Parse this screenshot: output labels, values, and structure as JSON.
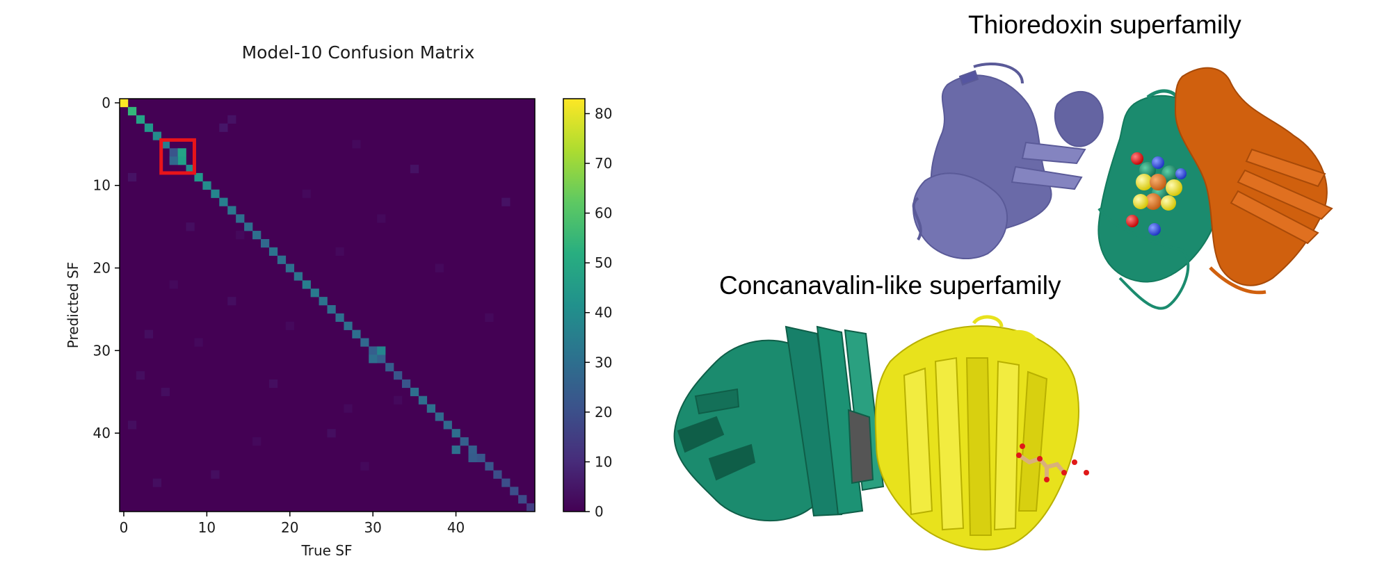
{
  "chart_data": {
    "type": "heatmap",
    "title": "Model-10 Confusion Matrix",
    "xlabel": "True SF",
    "ylabel": "Predicted SF",
    "size": 50,
    "xticks": [
      0,
      10,
      20,
      30,
      40
    ],
    "yticks": [
      0,
      10,
      20,
      30,
      40
    ],
    "colormap": "viridis",
    "colorbar": {
      "min": 0,
      "max": 83,
      "ticks": [
        0,
        10,
        20,
        30,
        40,
        50,
        60,
        70,
        80
      ]
    },
    "highlight_box": {
      "rows": [
        5,
        8
      ],
      "cols": [
        5,
        8
      ],
      "color": "#e8141a"
    },
    "diagonal": [
      83,
      55,
      48,
      44,
      40,
      36,
      22,
      47,
      40,
      44,
      40,
      38,
      36,
      33,
      30,
      30,
      30,
      28,
      32,
      30,
      30,
      32,
      35,
      34,
      32,
      30,
      30,
      30,
      30,
      28,
      25,
      25,
      24,
      22,
      22,
      30,
      30,
      30,
      28,
      28,
      30,
      25,
      25,
      22,
      22,
      20,
      20,
      20,
      19,
      15
    ],
    "off_diagonal": [
      [
        6,
        7,
        48
      ],
      [
        7,
        6,
        28
      ],
      [
        30,
        31,
        38
      ],
      [
        31,
        30,
        30
      ],
      [
        42,
        40,
        30
      ],
      [
        43,
        42,
        24
      ],
      [
        3,
        12,
        5
      ],
      [
        2,
        13,
        4
      ],
      [
        9,
        1,
        4
      ],
      [
        8,
        35,
        4
      ],
      [
        15,
        8,
        3
      ],
      [
        24,
        13,
        3
      ],
      [
        28,
        3,
        3
      ],
      [
        35,
        5,
        3
      ],
      [
        34,
        18,
        3
      ],
      [
        45,
        11,
        3
      ],
      [
        40,
        25,
        3
      ],
      [
        12,
        46,
        4
      ],
      [
        46,
        4,
        3
      ],
      [
        33,
        2,
        3
      ],
      [
        39,
        1,
        3
      ],
      [
        16,
        14,
        2
      ],
      [
        27,
        20,
        2
      ],
      [
        37,
        27,
        2
      ],
      [
        20,
        38,
        2
      ],
      [
        11,
        22,
        2
      ],
      [
        5,
        28,
        2
      ],
      [
        22,
        6,
        2
      ],
      [
        29,
        9,
        2
      ],
      [
        18,
        26,
        2
      ],
      [
        36,
        33,
        2
      ],
      [
        44,
        29,
        2
      ],
      [
        14,
        31,
        2
      ],
      [
        26,
        44,
        2
      ],
      [
        41,
        16,
        2
      ]
    ]
  },
  "structures": {
    "thioredoxin": {
      "title": "Thioredoxin superfamily"
    },
    "concanavalin": {
      "title": "Concanavalin-like superfamily"
    }
  },
  "colors": {
    "slate_blue": "#6a6aa8",
    "teal_green": "#1b8b6e",
    "orange": "#d0600e",
    "yellow": "#e8e21c",
    "dark_green": "#0f5e48",
    "ligand_tan": "#d9b07a",
    "oxygen_red": "#e01818",
    "nitrogen_blue": "#2e50e8"
  }
}
